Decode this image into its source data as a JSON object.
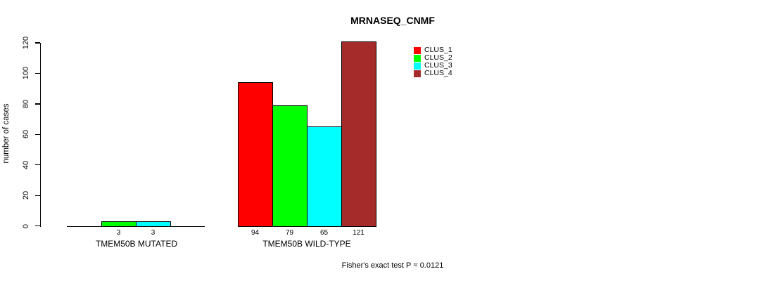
{
  "chart_data": {
    "type": "bar",
    "title": "MRNASEQ_CNMF",
    "ylabel": "number of cases",
    "xlabel": "",
    "ylim": [
      0,
      120
    ],
    "yticks": [
      0,
      20,
      40,
      60,
      80,
      100,
      120
    ],
    "grid": false,
    "legend_position": "top-right",
    "categories": [
      "TMEM50B MUTATED",
      "TMEM50B WILD-TYPE"
    ],
    "series": [
      {
        "name": "CLUS_1",
        "color": "#ff0000",
        "values": [
          0,
          94
        ]
      },
      {
        "name": "CLUS_2",
        "color": "#00ff00",
        "values": [
          3,
          79
        ]
      },
      {
        "name": "CLUS_3",
        "color": "#00ffff",
        "values": [
          3,
          65
        ]
      },
      {
        "name": "CLUS_4",
        "color": "#a52a2a",
        "values": [
          0,
          121
        ]
      }
    ],
    "value_labels_shown_only_when_nonzero": true,
    "footnote": "Fisher's exact test P = 0.0121",
    "axis_color": "#000000",
    "text_color": "#000000",
    "background_color": "#ffffff"
  }
}
